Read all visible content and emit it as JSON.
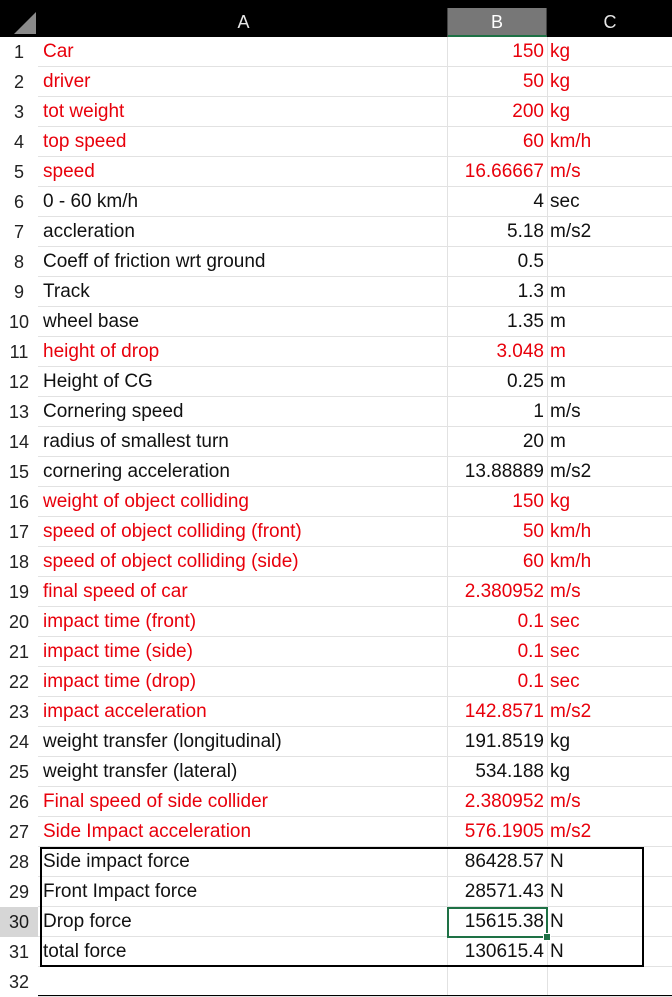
{
  "columns": [
    {
      "label": "A",
      "selected": false
    },
    {
      "label": "B",
      "selected": true
    },
    {
      "label": "C",
      "selected": false
    }
  ],
  "rows": [
    {
      "n": "1",
      "a": "Car",
      "b": "150",
      "c": "kg",
      "red": true
    },
    {
      "n": "2",
      "a": "driver",
      "b": "50",
      "c": "kg",
      "red": true
    },
    {
      "n": "3",
      "a": "tot weight",
      "b": "200",
      "c": "kg",
      "red": true
    },
    {
      "n": "4",
      "a": "top speed",
      "b": "60",
      "c": "km/h",
      "red": true
    },
    {
      "n": "5",
      "a": "speed",
      "b": "16.66667",
      "c": "m/s",
      "red": true
    },
    {
      "n": "6",
      "a": "0 - 60 km/h",
      "b": "4",
      "c": "sec",
      "red": false
    },
    {
      "n": "7",
      "a": "accleration",
      "b": "5.18",
      "c": "m/s2",
      "red": false
    },
    {
      "n": "8",
      "a": "Coeff of friction wrt ground",
      "b": "0.5",
      "c": "",
      "red": false
    },
    {
      "n": "9",
      "a": "Track",
      "b": "1.3",
      "c": "m",
      "red": false
    },
    {
      "n": "10",
      "a": "wheel base",
      "b": "1.35",
      "c": "m",
      "red": false
    },
    {
      "n": "11",
      "a": "height of drop",
      "b": "3.048",
      "c": "m",
      "red": true
    },
    {
      "n": "12",
      "a": "Height of CG",
      "b": "0.25",
      "c": "m",
      "red": false
    },
    {
      "n": "13",
      "a": "Cornering speed",
      "b": "1",
      "c": "m/s",
      "red": false
    },
    {
      "n": "14",
      "a": "radius of smallest turn",
      "b": "20",
      "c": "m",
      "red": false
    },
    {
      "n": "15",
      "a": "cornering acceleration",
      "b": "13.88889",
      "c": "m/s2",
      "red": false
    },
    {
      "n": "16",
      "a": "weight of object colliding",
      "b": "150",
      "c": "kg",
      "red": true
    },
    {
      "n": "17",
      "a": "speed of object colliding (front)",
      "b": "50",
      "c": "km/h",
      "red": true
    },
    {
      "n": "18",
      "a": "speed of object colliding (side)",
      "b": "60",
      "c": "km/h",
      "red": true
    },
    {
      "n": "19",
      "a": "final speed of car",
      "b": "2.380952",
      "c": "m/s",
      "red": true
    },
    {
      "n": "20",
      "a": "impact time (front)",
      "b": "0.1",
      "c": "sec",
      "red": true
    },
    {
      "n": "21",
      "a": "impact time (side)",
      "b": "0.1",
      "c": "sec",
      "red": true
    },
    {
      "n": "22",
      "a": "impact time (drop)",
      "b": "0.1",
      "c": "sec",
      "red": true
    },
    {
      "n": "23",
      "a": "impact acceleration",
      "b": "142.8571",
      "c": "m/s2",
      "red": true
    },
    {
      "n": "24",
      "a": "weight transfer (longitudinal)",
      "b": "191.8519",
      "c": "kg",
      "red": false
    },
    {
      "n": "25",
      "a": "weight transfer (lateral)",
      "b": "534.188",
      "c": "kg",
      "red": false
    },
    {
      "n": "26",
      "a": "Final speed of side collider",
      "b": "2.380952",
      "c": "m/s",
      "red": true
    },
    {
      "n": "27",
      "a": "Side Impact acceleration",
      "b": "576.1905",
      "c": "m/s2",
      "red": true
    },
    {
      "n": "28",
      "a": "Side impact force",
      "b": "86428.57",
      "c": "N",
      "red": false
    },
    {
      "n": "29",
      "a": "Front Impact force",
      "b": "28571.43",
      "c": "N",
      "red": false
    },
    {
      "n": "30",
      "a": "Drop force",
      "b": "15615.38",
      "c": "N",
      "red": false,
      "active": true
    },
    {
      "n": "31",
      "a": "total force",
      "b": "130615.4",
      "c": "N",
      "red": false
    },
    {
      "n": "32",
      "a": "",
      "b": "",
      "c": "",
      "red": false
    }
  ],
  "colors": {
    "red_text": "#e8000b",
    "selection_green": "#1e7145"
  }
}
